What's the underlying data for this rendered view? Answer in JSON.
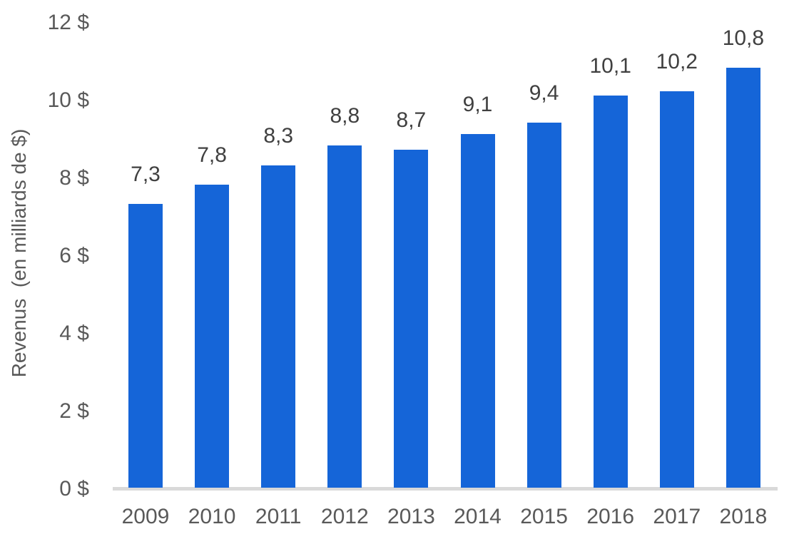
{
  "chart_data": {
    "type": "bar",
    "title": "",
    "xlabel": "",
    "ylabel": "Revenus  (en milliards de $)",
    "categories": [
      "2009",
      "2010",
      "2011",
      "2012",
      "2013",
      "2014",
      "2015",
      "2016",
      "2017",
      "2018"
    ],
    "values": [
      7.3,
      7.8,
      8.3,
      8.8,
      8.7,
      9.1,
      9.4,
      10.1,
      10.2,
      10.8
    ],
    "value_labels": [
      "7,3",
      "7,8",
      "8,3",
      "8,8",
      "8,7",
      "9,1",
      "9,4",
      "10,1",
      "10,2",
      "10,8"
    ],
    "ytick_values": [
      0,
      2,
      4,
      6,
      8,
      10,
      12
    ],
    "ytick_labels": [
      "0 $",
      "2 $",
      "4 $",
      "6 $",
      "8 $",
      "10 $",
      "12 $"
    ],
    "ylim": [
      0,
      12
    ],
    "grid": false,
    "legend": "none",
    "colors": {
      "bar": "#1565d8",
      "axis_line": "#d9d9d9",
      "tick_text": "#595959",
      "value_text": "#404040"
    }
  }
}
